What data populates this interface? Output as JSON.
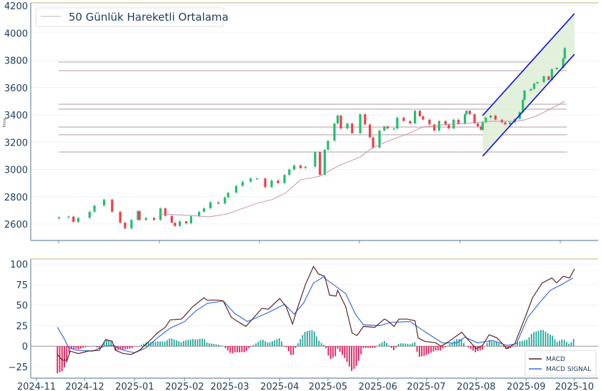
{
  "chart_data": [
    {
      "type": "candlestick",
      "title": "",
      "ylabel": "Price",
      "ylim": [
        2550,
        4200
      ],
      "yticks": [
        2600,
        2800,
        3000,
        3200,
        3400,
        3600,
        3800,
        4000,
        4200
      ],
      "x_unit": "days since 2024-11-01",
      "legend": {
        "label": "50 Günlük Hareketli Ortalama",
        "placement": "top-left"
      },
      "closes": [
        [
          14,
          2650
        ],
        [
          20,
          2655
        ],
        [
          23,
          2615
        ],
        [
          26,
          2645
        ],
        [
          33,
          2690
        ],
        [
          36,
          2735
        ],
        [
          42,
          2780
        ],
        [
          47,
          2690
        ],
        [
          52,
          2610
        ],
        [
          55,
          2568
        ],
        [
          59,
          2630
        ],
        [
          63,
          2695
        ],
        [
          64,
          2630
        ],
        [
          68,
          2645
        ],
        [
          73,
          2630
        ],
        [
          77,
          2715
        ],
        [
          80,
          2660
        ],
        [
          84,
          2610
        ],
        [
          86,
          2585
        ],
        [
          89,
          2620
        ],
        [
          93,
          2605
        ],
        [
          96,
          2657
        ],
        [
          101,
          2690
        ],
        [
          104,
          2715
        ],
        [
          108,
          2760
        ],
        [
          113,
          2750
        ],
        [
          117,
          2795
        ],
        [
          119,
          2830
        ],
        [
          124,
          2880
        ],
        [
          128,
          2910
        ],
        [
          133,
          2935
        ],
        [
          137,
          2935
        ],
        [
          142,
          2870
        ],
        [
          146,
          2920
        ],
        [
          150,
          2900
        ],
        [
          154,
          2960
        ],
        [
          157,
          3000
        ],
        [
          160,
          3030
        ],
        [
          164,
          3010
        ],
        [
          167,
          3020
        ],
        [
          173,
          3128
        ],
        [
          176,
          2960
        ],
        [
          179,
          3145
        ],
        [
          181,
          3210
        ],
        [
          185,
          3337
        ],
        [
          187,
          3395
        ],
        [
          189,
          3300
        ],
        [
          193,
          3337
        ],
        [
          196,
          3265
        ],
        [
          201,
          3405
        ],
        [
          204,
          3330
        ],
        [
          207,
          3235
        ],
        [
          209,
          3160
        ],
        [
          213,
          3285
        ],
        [
          216,
          3315
        ],
        [
          218,
          3300
        ],
        [
          222,
          3300
        ],
        [
          224,
          3380
        ],
        [
          228,
          3355
        ],
        [
          232,
          3337
        ],
        [
          235,
          3430
        ],
        [
          238,
          3390
        ],
        [
          240,
          3365
        ],
        [
          244,
          3330
        ],
        [
          247,
          3285
        ],
        [
          250,
          3355
        ],
        [
          254,
          3330
        ],
        [
          256,
          3300
        ],
        [
          259,
          3365
        ],
        [
          262,
          3337
        ],
        [
          266,
          3405
        ],
        [
          267,
          3430
        ],
        [
          269,
          3405
        ],
        [
          272,
          3337
        ],
        [
          274,
          3315
        ],
        [
          276,
          3290
        ],
        [
          277,
          3345
        ],
        [
          279,
          3380
        ],
        [
          282,
          3395
        ],
        [
          285,
          3365
        ],
        [
          289,
          3345
        ],
        [
          291,
          3330
        ],
        [
          294,
          3345
        ],
        [
          297,
          3370
        ],
        [
          300,
          3420
        ],
        [
          302,
          3510
        ],
        [
          303,
          3578
        ],
        [
          307,
          3590
        ],
        [
          309,
          3630
        ],
        [
          311,
          3640
        ],
        [
          315,
          3683
        ],
        [
          318,
          3656
        ],
        [
          320,
          3735
        ],
        [
          323,
          3745
        ],
        [
          327,
          3813
        ],
        [
          328,
          3890
        ]
      ],
      "moving_average_50": [
        [
          76,
          2673
        ],
        [
          96,
          2663
        ],
        [
          107,
          2652
        ],
        [
          118,
          2673
        ],
        [
          137,
          2752
        ],
        [
          146,
          2778
        ],
        [
          155,
          2830
        ],
        [
          164,
          2924
        ],
        [
          176,
          2950
        ],
        [
          187,
          3024
        ],
        [
          201,
          3092
        ],
        [
          208,
          3154
        ],
        [
          218,
          3207
        ],
        [
          230,
          3259
        ],
        [
          240,
          3311
        ],
        [
          252,
          3327
        ],
        [
          267,
          3337
        ],
        [
          282,
          3353
        ],
        [
          297,
          3353
        ],
        [
          303,
          3363
        ],
        [
          311,
          3395
        ],
        [
          319,
          3442
        ],
        [
          328,
          3500
        ]
      ],
      "horizontal_levels": [
        3787,
        3724,
        3478,
        3442,
        3311,
        3254,
        3128
      ],
      "trend_channel": {
        "upper": [
          [
            277,
            3395
          ],
          [
            334,
            4142
          ]
        ],
        "lower": [
          [
            277,
            3097
          ],
          [
            334,
            3844
          ]
        ]
      }
    },
    {
      "type": "line",
      "title": "",
      "ylim": [
        -35,
        105
      ],
      "yticks": [
        -25,
        0,
        25,
        50,
        75,
        100
      ],
      "ytick_labels": [
        "−25",
        "0",
        "25",
        "50",
        "75",
        "100"
      ],
      "x_unit": "days since 2024-11-01",
      "xticks": [
        [
          0,
          "2024-11"
        ],
        [
          30,
          "2024-12"
        ],
        [
          61,
          "2025-01"
        ],
        [
          92,
          "2025-02"
        ],
        [
          120,
          "2025-03"
        ],
        [
          151,
          "2025-04"
        ],
        [
          181,
          "2025-05"
        ],
        [
          212,
          "2025-06"
        ],
        [
          242,
          "2025-07"
        ],
        [
          273,
          "2025-08"
        ],
        [
          304,
          "2025-09"
        ],
        [
          334,
          "2025-10"
        ]
      ],
      "legend": {
        "placement": "bottom-right",
        "entries": [
          "MACD",
          "MACD SIGNAL"
        ]
      },
      "series": [
        {
          "name": "MACD",
          "color": "#5a2424",
          "points": [
            [
              13,
              -10
            ],
            [
              16,
              -17
            ],
            [
              19,
              -17
            ],
            [
              21,
              -6
            ],
            [
              26,
              -9
            ],
            [
              32,
              -6
            ],
            [
              39,
              -5
            ],
            [
              43,
              8
            ],
            [
              47,
              6
            ],
            [
              49,
              -5
            ],
            [
              54,
              -9
            ],
            [
              59,
              -10
            ],
            [
              64,
              -5
            ],
            [
              71,
              8
            ],
            [
              75,
              16
            ],
            [
              80,
              23
            ],
            [
              83,
              32
            ],
            [
              90,
              33
            ],
            [
              92,
              37
            ],
            [
              97,
              48
            ],
            [
              104,
              59
            ],
            [
              106,
              56
            ],
            [
              113,
              56
            ],
            [
              116,
              55
            ],
            [
              121,
              35
            ],
            [
              125,
              30
            ],
            [
              130,
              24
            ],
            [
              135,
              35
            ],
            [
              140,
              46
            ],
            [
              144,
              45
            ],
            [
              151,
              58
            ],
            [
              155,
              48
            ],
            [
              159,
              27
            ],
            [
              162,
              46
            ],
            [
              167,
              75
            ],
            [
              172,
              97
            ],
            [
              175,
              88
            ],
            [
              179,
              85
            ],
            [
              182,
              62
            ],
            [
              186,
              61
            ],
            [
              187,
              68
            ],
            [
              192,
              48
            ],
            [
              196,
              16
            ],
            [
              199,
              13
            ],
            [
              203,
              24
            ],
            [
              210,
              23
            ],
            [
              216,
              33
            ],
            [
              218,
              31
            ],
            [
              222,
              24
            ],
            [
              225,
              33
            ],
            [
              230,
              33
            ],
            [
              235,
              31
            ],
            [
              237,
              10
            ],
            [
              241,
              6
            ],
            [
              248,
              4
            ],
            [
              251,
              0
            ],
            [
              254,
              3
            ],
            [
              264,
              17
            ],
            [
              267,
              10
            ],
            [
              273,
              -3
            ],
            [
              277,
              1
            ],
            [
              281,
              14
            ],
            [
              286,
              10
            ],
            [
              292,
              -3
            ],
            [
              297,
              3
            ],
            [
              303,
              33
            ],
            [
              308,
              59
            ],
            [
              314,
              77
            ],
            [
              320,
              83
            ],
            [
              323,
              77
            ],
            [
              327,
              85
            ],
            [
              331,
              83
            ],
            [
              334,
              94
            ]
          ]
        },
        {
          "name": "MACD SIGNAL",
          "color": "#3a6fd8",
          "points": [
            [
              13,
              23
            ],
            [
              17,
              10
            ],
            [
              20,
              -2
            ],
            [
              25,
              -5
            ],
            [
              35,
              -6
            ],
            [
              42,
              0
            ],
            [
              48,
              1
            ],
            [
              54,
              -5
            ],
            [
              61,
              -8
            ],
            [
              68,
              -2
            ],
            [
              75,
              10
            ],
            [
              83,
              22
            ],
            [
              92,
              30
            ],
            [
              99,
              43
            ],
            [
              106,
              52
            ],
            [
              116,
              55
            ],
            [
              123,
              40
            ],
            [
              131,
              30
            ],
            [
              137,
              35
            ],
            [
              144,
              41
            ],
            [
              154,
              51
            ],
            [
              160,
              39
            ],
            [
              166,
              53
            ],
            [
              172,
              77
            ],
            [
              178,
              84
            ],
            [
              185,
              74
            ],
            [
              192,
              64
            ],
            [
              198,
              39
            ],
            [
              203,
              26
            ],
            [
              213,
              25
            ],
            [
              220,
              29
            ],
            [
              232,
              30
            ],
            [
              240,
              19
            ],
            [
              252,
              4
            ],
            [
              261,
              4
            ],
            [
              266,
              11
            ],
            [
              274,
              4
            ],
            [
              283,
              7
            ],
            [
              292,
              1
            ],
            [
              298,
              3
            ],
            [
              305,
              35
            ],
            [
              312,
              52
            ],
            [
              319,
              68
            ],
            [
              326,
              75
            ],
            [
              333,
              83
            ]
          ]
        }
      ],
      "histogram": {
        "name": "MACD - SIGNAL",
        "positive_color": "#26a69a",
        "negative_color": "#e8185a"
      }
    }
  ]
}
